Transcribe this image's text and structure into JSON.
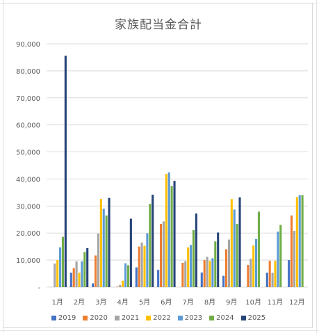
{
  "chart_data": {
    "type": "bar",
    "title": "家族配当金合計",
    "xlabel": "",
    "ylabel": "",
    "ylim": [
      0,
      90000
    ],
    "yticks": [
      "-",
      "10,000",
      "20,000",
      "30,000",
      "40,000",
      "50,000",
      "60,000",
      "70,000",
      "80,000",
      "90,000"
    ],
    "categories": [
      "1月",
      "2月",
      "3月",
      "4月",
      "5月",
      "6月",
      "7月",
      "8月",
      "9月",
      "10月",
      "11月",
      "12月"
    ],
    "grid": true,
    "legend_position": "bottom",
    "series": [
      {
        "name": "2019",
        "color": "#4472c4",
        "values": [
          0,
          5300,
          1400,
          0,
          7300,
          6400,
          0,
          5400,
          4200,
          0,
          5300,
          10000
        ]
      },
      {
        "name": "2020",
        "color": "#ed7d31",
        "values": [
          0,
          7000,
          11700,
          200,
          15000,
          23400,
          9000,
          10000,
          14000,
          8200,
          9700,
          26500
        ]
      },
      {
        "name": "2021",
        "color": "#a5a5a5",
        "values": [
          8700,
          9500,
          19800,
          800,
          16500,
          24300,
          9600,
          11200,
          17600,
          10500,
          5300,
          20800
        ]
      },
      {
        "name": "2022",
        "color": "#ffc000",
        "values": [
          10000,
          5300,
          32600,
          2400,
          15300,
          41900,
          14700,
          9700,
          32600,
          15400,
          9700,
          33300
        ]
      },
      {
        "name": "2023",
        "color": "#5b9bd5",
        "values": [
          14700,
          9500,
          29000,
          8800,
          19900,
          42400,
          15600,
          10700,
          28700,
          17800,
          20500,
          34000
        ]
      },
      {
        "name": "2024",
        "color": "#70ad47",
        "values": [
          18600,
          13000,
          26500,
          8100,
          30800,
          37400,
          21100,
          16900,
          23400,
          27900,
          23000,
          34000
        ]
      },
      {
        "name": "2025",
        "color": "#264478",
        "values": [
          85600,
          14400,
          33000,
          25300,
          34200,
          39300,
          27200,
          20200,
          33200,
          0,
          0,
          0
        ]
      }
    ]
  }
}
